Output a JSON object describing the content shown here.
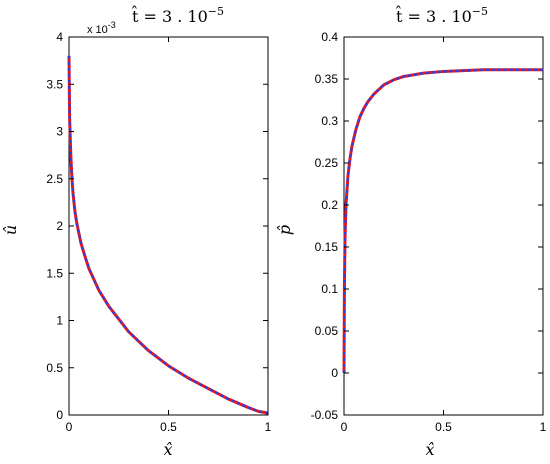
{
  "chart_data": [
    {
      "type": "line",
      "title": "t̂ = 3 . 10",
      "title_sup": "−5",
      "xlabel": "x̂",
      "ylabel": "û",
      "xlim": [
        0,
        1
      ],
      "ylim": [
        0,
        4
      ],
      "y_exponent_label": "x 10",
      "y_exponent_sup": "-3",
      "xticks": [
        "0",
        "0.5",
        "1"
      ],
      "yticks": [
        "0",
        "0.5",
        "1",
        "1.5",
        "2",
        "2.5",
        "3",
        "3.5",
        "4"
      ],
      "grid": false,
      "colors": {
        "series_a": "#e8151d",
        "series_b": "#2b3fe0"
      },
      "series": [
        {
          "x": [
            0.0,
            0.003,
            0.006,
            0.01,
            0.015,
            0.02,
            0.03,
            0.04,
            0.06,
            0.08,
            0.1,
            0.15,
            0.2,
            0.3,
            0.4,
            0.5,
            0.6,
            0.7,
            0.8,
            0.9,
            0.95,
            1.0
          ],
          "y": [
            3.8,
            3.15,
            2.95,
            2.7,
            2.5,
            2.35,
            2.15,
            2.02,
            1.82,
            1.68,
            1.55,
            1.32,
            1.15,
            0.88,
            0.68,
            0.52,
            0.39,
            0.28,
            0.17,
            0.08,
            0.04,
            0.02
          ]
        },
        {
          "x": [
            0.0,
            0.003,
            0.006,
            0.01,
            0.015,
            0.02,
            0.03,
            0.04,
            0.06,
            0.08,
            0.1,
            0.15,
            0.2,
            0.3,
            0.4,
            0.5,
            0.6,
            0.7,
            0.8,
            0.9,
            0.95,
            1.0
          ],
          "y": [
            3.8,
            3.15,
            2.95,
            2.7,
            2.5,
            2.35,
            2.15,
            2.02,
            1.82,
            1.68,
            1.55,
            1.32,
            1.15,
            0.88,
            0.68,
            0.52,
            0.39,
            0.28,
            0.17,
            0.08,
            0.04,
            0.02
          ]
        }
      ]
    },
    {
      "type": "line",
      "title": "t̂ = 3 . 10",
      "title_sup": "−5",
      "xlabel": "x̂",
      "ylabel": "p̂",
      "xlim": [
        0,
        1
      ],
      "ylim": [
        -0.05,
        0.4
      ],
      "xticks": [
        "0",
        "0.5",
        "1"
      ],
      "yticks": [
        "-0.05",
        "0",
        "0.05",
        "0.1",
        "0.15",
        "0.2",
        "0.25",
        "0.3",
        "0.35",
        "0.4"
      ],
      "grid": false,
      "colors": {
        "series_a": "#e8151d",
        "series_b": "#2b3fe0"
      },
      "series": [
        {
          "x": [
            0.0,
            0.002,
            0.005,
            0.01,
            0.02,
            0.03,
            0.04,
            0.06,
            0.08,
            0.1,
            0.12,
            0.15,
            0.2,
            0.25,
            0.3,
            0.4,
            0.5,
            0.6,
            0.7,
            0.8,
            0.9,
            1.0
          ],
          "y": [
            0.0,
            0.1,
            0.16,
            0.2,
            0.235,
            0.255,
            0.27,
            0.29,
            0.305,
            0.315,
            0.323,
            0.332,
            0.343,
            0.349,
            0.353,
            0.357,
            0.359,
            0.36,
            0.361,
            0.361,
            0.361,
            0.361
          ]
        },
        {
          "x": [
            0.0,
            0.002,
            0.005,
            0.01,
            0.02,
            0.03,
            0.04,
            0.06,
            0.08,
            0.1,
            0.12,
            0.15,
            0.2,
            0.25,
            0.3,
            0.4,
            0.5,
            0.6,
            0.7,
            0.8,
            0.9,
            1.0
          ],
          "y": [
            0.0,
            0.1,
            0.16,
            0.2,
            0.235,
            0.255,
            0.27,
            0.29,
            0.305,
            0.315,
            0.323,
            0.332,
            0.343,
            0.349,
            0.353,
            0.357,
            0.359,
            0.36,
            0.361,
            0.361,
            0.361,
            0.361
          ]
        }
      ]
    }
  ]
}
